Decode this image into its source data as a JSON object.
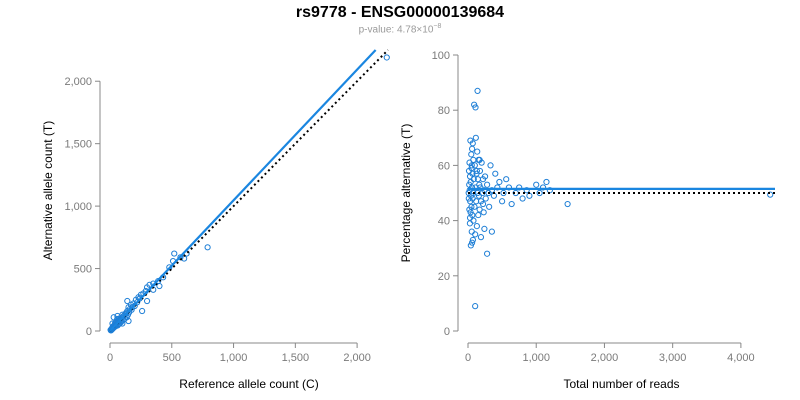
{
  "title": "rs9778 - ENSG00000139684",
  "subtitle": {
    "prefix": "p-value: 4.78×10",
    "exponent": "−8"
  },
  "colors": {
    "points": "#1f7fd6",
    "fit_line": "#1a86e0",
    "reference_line": "#000000",
    "axis": "#888888",
    "tick_label": "#7a7a7a",
    "subtitle": "#9a9a9a"
  },
  "chart_data": [
    {
      "type": "scatter",
      "title": "",
      "xlabel": "Reference allele count (C)",
      "ylabel": "Alternative allele count (T)",
      "xlim": [
        0,
        2250
      ],
      "ylim": [
        0,
        2250
      ],
      "xticks": [
        0,
        500,
        1000,
        1500,
        2000
      ],
      "xtick_labels": [
        "0",
        "500",
        "1,000",
        "1,500",
        "2,000"
      ],
      "yticks": [
        0,
        500,
        1000,
        1500,
        2000
      ],
      "ytick_labels": [
        "0",
        "500",
        "1,000",
        "1,500",
        "2,000"
      ],
      "grid": false,
      "fit_line": {
        "from": [
          0,
          0
        ],
        "to": [
          2150,
          2250
        ],
        "style": "solid"
      },
      "reference_line": {
        "from": [
          0,
          0
        ],
        "to": [
          2250,
          2250
        ],
        "style": "dotted"
      },
      "points": [
        [
          2240,
          2190
        ],
        [
          790,
          670
        ],
        [
          570,
          590
        ],
        [
          520,
          620
        ],
        [
          510,
          560
        ],
        [
          480,
          510
        ],
        [
          430,
          430
        ],
        [
          390,
          400
        ],
        [
          350,
          380
        ],
        [
          320,
          370
        ],
        [
          300,
          350
        ],
        [
          290,
          320
        ],
        [
          270,
          300
        ],
        [
          250,
          290
        ],
        [
          240,
          260
        ],
        [
          230,
          270
        ],
        [
          220,
          230
        ],
        [
          210,
          250
        ],
        [
          200,
          200
        ],
        [
          190,
          220
        ],
        [
          180,
          190
        ],
        [
          175,
          170
        ],
        [
          170,
          210
        ],
        [
          160,
          175
        ],
        [
          155,
          150
        ],
        [
          150,
          190
        ],
        [
          145,
          130
        ],
        [
          140,
          160
        ],
        [
          135,
          110
        ],
        [
          130,
          145
        ],
        [
          125,
          135
        ],
        [
          120,
          100
        ],
        [
          115,
          125
        ],
        [
          110,
          90
        ],
        [
          105,
          115
        ],
        [
          100,
          130
        ],
        [
          95,
          80
        ],
        [
          90,
          105
        ],
        [
          88,
          70
        ],
        [
          85,
          95
        ],
        [
          80,
          85
        ],
        [
          78,
          60
        ],
        [
          75,
          100
        ],
        [
          72,
          75
        ],
        [
          70,
          55
        ],
        [
          68,
          90
        ],
        [
          65,
          80
        ],
        [
          62,
          45
        ],
        [
          60,
          70
        ],
        [
          58,
          95
        ],
        [
          55,
          60
        ],
        [
          52,
          50
        ],
        [
          50,
          75
        ],
        [
          48,
          40
        ],
        [
          45,
          55
        ],
        [
          42,
          65
        ],
        [
          40,
          35
        ],
        [
          38,
          50
        ],
        [
          35,
          45
        ],
        [
          33,
          30
        ],
        [
          30,
          40
        ],
        [
          28,
          25
        ],
        [
          25,
          35
        ],
        [
          22,
          20
        ],
        [
          20,
          30
        ],
        [
          18,
          15
        ],
        [
          15,
          20
        ],
        [
          12,
          10
        ],
        [
          10,
          12
        ],
        [
          8,
          5
        ],
        [
          5,
          8
        ],
        [
          260,
          160
        ],
        [
          300,
          240
        ],
        [
          350,
          330
        ],
        [
          400,
          360
        ],
        [
          600,
          580
        ],
        [
          620,
          620
        ],
        [
          140,
          240
        ],
        [
          60,
          120
        ],
        [
          30,
          110
        ],
        [
          20,
          60
        ],
        [
          100,
          60
        ],
        [
          150,
          80
        ]
      ]
    },
    {
      "type": "scatter",
      "title": "",
      "xlabel": "Total number of reads",
      "ylabel": "Percentage alternative (T)",
      "xlim": [
        0,
        4500
      ],
      "ylim": [
        0,
        100
      ],
      "xticks": [
        0,
        1000,
        2000,
        3000,
        4000
      ],
      "xtick_labels": [
        "0",
        "1,000",
        "2,000",
        "3,000",
        "4,000"
      ],
      "yticks": [
        0,
        20,
        40,
        60,
        80,
        100
      ],
      "ytick_labels": [
        "0",
        "20",
        "40",
        "60",
        "80",
        "100"
      ],
      "grid": false,
      "fit_line": {
        "y": 51.5,
        "style": "solid"
      },
      "reference_line": {
        "y": 50,
        "style": "dotted"
      },
      "points": [
        [
          4430,
          49.4
        ],
        [
          1460,
          46
        ],
        [
          1200,
          51
        ],
        [
          1150,
          54
        ],
        [
          1100,
          52
        ],
        [
          1050,
          50
        ],
        [
          1000,
          53
        ],
        [
          900,
          49
        ],
        [
          860,
          51
        ],
        [
          800,
          48
        ],
        [
          750,
          52
        ],
        [
          700,
          50
        ],
        [
          640,
          46
        ],
        [
          600,
          52
        ],
        [
          560,
          55
        ],
        [
          520,
          50
        ],
        [
          500,
          47
        ],
        [
          460,
          54
        ],
        [
          430,
          52
        ],
        [
          400,
          57
        ],
        [
          380,
          49
        ],
        [
          350,
          51
        ],
        [
          330,
          60
        ],
        [
          310,
          45
        ],
        [
          300,
          50
        ],
        [
          280,
          53
        ],
        [
          260,
          48
        ],
        [
          250,
          56
        ],
        [
          240,
          51
        ],
        [
          230,
          43
        ],
        [
          220,
          55
        ],
        [
          210,
          50
        ],
        [
          200,
          61
        ],
        [
          190,
          47
        ],
        [
          180,
          52
        ],
        [
          175,
          58
        ],
        [
          170,
          44
        ],
        [
          165,
          53
        ],
        [
          160,
          49
        ],
        [
          155,
          62
        ],
        [
          150,
          42
        ],
        [
          145,
          55
        ],
        [
          140,
          50
        ],
        [
          135,
          65
        ],
        [
          130,
          38
        ],
        [
          125,
          57
        ],
        [
          120,
          47
        ],
        [
          115,
          70
        ],
        [
          110,
          52
        ],
        [
          105,
          35
        ],
        [
          100,
          60
        ],
        [
          95,
          45
        ],
        [
          90,
          82
        ],
        [
          85,
          55
        ],
        [
          80,
          40
        ],
        [
          78,
          62
        ],
        [
          75,
          50
        ],
        [
          72,
          33
        ],
        [
          70,
          68
        ],
        [
          68,
          48
        ],
        [
          65,
          57
        ],
        [
          62,
          42
        ],
        [
          60,
          66
        ],
        [
          58,
          52
        ],
        [
          55,
          36
        ],
        [
          52,
          59
        ],
        [
          50,
          45
        ],
        [
          48,
          64
        ],
        [
          45,
          49
        ],
        [
          42,
          31
        ],
        [
          40,
          54
        ],
        [
          38,
          43
        ],
        [
          35,
          69
        ],
        [
          32,
          47
        ],
        [
          30,
          56
        ],
        [
          28,
          39
        ],
        [
          25,
          51
        ],
        [
          22,
          61
        ],
        [
          20,
          44
        ],
        [
          18,
          53
        ],
        [
          15,
          58
        ],
        [
          12,
          48
        ],
        [
          10,
          50
        ],
        [
          140,
          87
        ],
        [
          110,
          81
        ],
        [
          105,
          9
        ],
        [
          280,
          28
        ],
        [
          240,
          37
        ],
        [
          350,
          36
        ],
        [
          190,
          34
        ],
        [
          60,
          32
        ],
        [
          30,
          41
        ],
        [
          55,
          60
        ],
        [
          130,
          58
        ],
        [
          170,
          62
        ],
        [
          220,
          46
        ]
      ]
    }
  ]
}
